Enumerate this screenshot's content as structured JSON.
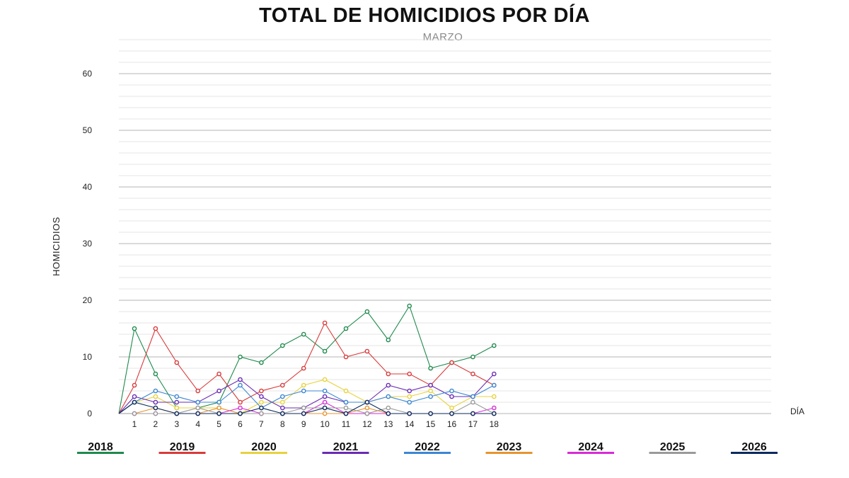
{
  "chart_data": {
    "type": "line",
    "title": "TOTAL DE HOMICIDIOS POR DÍA",
    "subtitle": "MARZO",
    "ylabel": "HOMICIDIOS",
    "xlabel": "DÍA",
    "ylim": [
      0,
      60
    ],
    "yticks": [
      "0",
      "10",
      "20",
      "30",
      "40",
      "50",
      "60"
    ],
    "x": [
      "1",
      "2",
      "3",
      "4",
      "5",
      "6",
      "7",
      "8",
      "9",
      "10",
      "11",
      "12",
      "13",
      "14",
      "15",
      "16",
      "17",
      "18"
    ],
    "grid": true,
    "legend_position": "bottom",
    "series": [
      {
        "name": "2018",
        "color": "#1e8a4c",
        "values": [
          15,
          7,
          1,
          1,
          2,
          10,
          9,
          12,
          14,
          11,
          15,
          18,
          13,
          19,
          8,
          9,
          10,
          12
        ]
      },
      {
        "name": "2019",
        "color": "#d93a3a",
        "values": [
          5,
          15,
          9,
          4,
          7,
          2,
          4,
          5,
          8,
          16,
          10,
          11,
          7,
          7,
          5,
          9,
          7,
          5
        ]
      },
      {
        "name": "2020",
        "color": "#e8d23c",
        "values": [
          2,
          3,
          1,
          1,
          1,
          0,
          2,
          2,
          5,
          6,
          4,
          2,
          3,
          3,
          4,
          1,
          3,
          3
        ]
      },
      {
        "name": "2021",
        "color": "#6a2bb5",
        "values": [
          3,
          2,
          2,
          2,
          4,
          6,
          3,
          1,
          1,
          3,
          2,
          2,
          5,
          4,
          5,
          3,
          3,
          7
        ]
      },
      {
        "name": "2022",
        "color": "#3b87d4",
        "values": [
          2,
          4,
          3,
          2,
          2,
          5,
          1,
          3,
          4,
          4,
          2,
          2,
          3,
          2,
          3,
          4,
          3,
          5
        ]
      },
      {
        "name": "2023",
        "color": "#e8942e",
        "values": [
          0,
          1,
          0,
          0,
          1,
          0,
          0,
          0,
          0,
          0,
          0,
          1,
          0,
          0,
          0,
          0,
          0,
          0
        ]
      },
      {
        "name": "2024",
        "color": "#d92bd9",
        "values": [
          0,
          0,
          0,
          0,
          0,
          1,
          0,
          0,
          0,
          2,
          0,
          0,
          0,
          0,
          0,
          0,
          0,
          1
        ]
      },
      {
        "name": "2025",
        "color": "#9a9a9a",
        "values": [
          0,
          0,
          0,
          1,
          0,
          0,
          0,
          0,
          1,
          1,
          1,
          0,
          1,
          0,
          0,
          0,
          2,
          0
        ]
      },
      {
        "name": "2026",
        "color": "#0b2a5e",
        "values": [
          2,
          1,
          0,
          0,
          0,
          0,
          1,
          0,
          0,
          1,
          0,
          2,
          0,
          0,
          0,
          0,
          0,
          0
        ]
      }
    ]
  }
}
